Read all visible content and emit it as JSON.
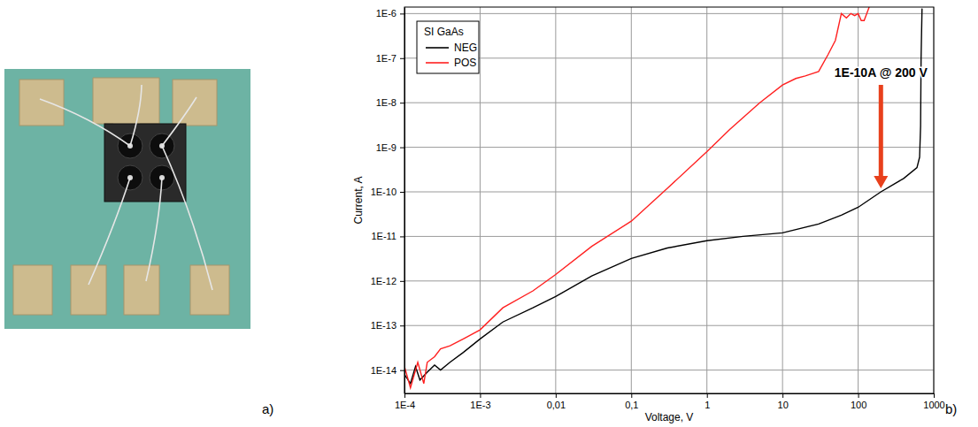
{
  "panel_labels": [
    "a)",
    "b)"
  ],
  "chart_data": {
    "type": "line",
    "log": true,
    "grid": true,
    "legend": "upper left",
    "legend_title": "SI GaAs",
    "x_label": "Voltage, V",
    "y_label": "Current, A",
    "xlim": [
      0.0001,
      1000
    ],
    "ylim": [
      3e-15,
      1.4e-06
    ],
    "xticks": [
      {
        "value": 0.0001,
        "label": "1E-4"
      },
      {
        "value": 0.001,
        "label": "1E-3"
      },
      {
        "value": 0.01,
        "label": "0,01"
      },
      {
        "value": 0.1,
        "label": "0,1"
      },
      1,
      10,
      100,
      1000
    ],
    "yticks": [
      {
        "value": 1e-14,
        "label": "1E-14"
      },
      {
        "value": 1e-13,
        "label": "1E-13"
      },
      {
        "value": 1e-12,
        "label": "1E-12"
      },
      {
        "value": 1e-11,
        "label": "1E-11"
      },
      {
        "value": 1e-10,
        "label": "1E-10"
      },
      {
        "value": 1e-09,
        "label": "1E-9"
      },
      {
        "value": 1e-08,
        "label": "1E-8"
      },
      {
        "value": 1e-07,
        "label": "1E-7"
      },
      {
        "value": 1e-06,
        "label": "1E-6"
      }
    ],
    "series": [
      {
        "name": "NEG",
        "color": "#000000",
        "x": [
          0.0001,
          0.00012,
          0.00014,
          0.00016,
          0.0002,
          0.00025,
          0.0003,
          0.0004,
          0.0006,
          0.001,
          0.002,
          0.005,
          0.01,
          0.03,
          0.1,
          0.3,
          1,
          3,
          10,
          30,
          60,
          100,
          200,
          400,
          600,
          650,
          670,
          680,
          700
        ],
        "values": [
          8e-15,
          5e-15,
          1.2e-14,
          6e-15,
          9e-15,
          1.3e-14,
          1e-14,
          1.5e-14,
          2.5e-14,
          5e-14,
          1.2e-13,
          2.5e-13,
          4.5e-13,
          1.3e-12,
          3.2e-12,
          5.5e-12,
          8e-12,
          1e-11,
          1.2e-11,
          1.9e-11,
          3e-11,
          4.5e-11,
          1e-10,
          2e-10,
          3.5e-10,
          6e-10,
          3e-09,
          1e-07,
          1.3e-06
        ]
      },
      {
        "name": "POS",
        "color": "#ff2020",
        "x": [
          0.0001,
          0.00012,
          0.00015,
          0.00018,
          0.0002,
          0.00025,
          0.0003,
          0.0004,
          0.0006,
          0.001,
          0.002,
          0.005,
          0.01,
          0.03,
          0.1,
          0.3,
          1,
          2,
          5,
          10,
          15,
          20,
          30,
          40,
          50,
          60,
          70,
          80,
          90,
          100,
          110,
          120,
          140
        ],
        "values": [
          1.2e-14,
          4e-15,
          1.5e-14,
          5e-15,
          1.5e-14,
          2e-14,
          3e-14,
          3.5e-14,
          5e-14,
          8e-14,
          2.5e-13,
          6e-13,
          1.4e-12,
          6e-12,
          2.2e-11,
          1.2e-10,
          8e-10,
          2.5e-09,
          1e-08,
          2.5e-08,
          3.5e-08,
          4e-08,
          5e-08,
          1.2e-07,
          2.5e-07,
          1e-06,
          8e-07,
          1e-06,
          9e-07,
          1e-06,
          7e-07,
          7e-07,
          1.4e-06
        ]
      }
    ],
    "annotations": [
      {
        "text": "1E-10A @ 200 V",
        "x": 200,
        "y": 1e-10
      }
    ]
  }
}
